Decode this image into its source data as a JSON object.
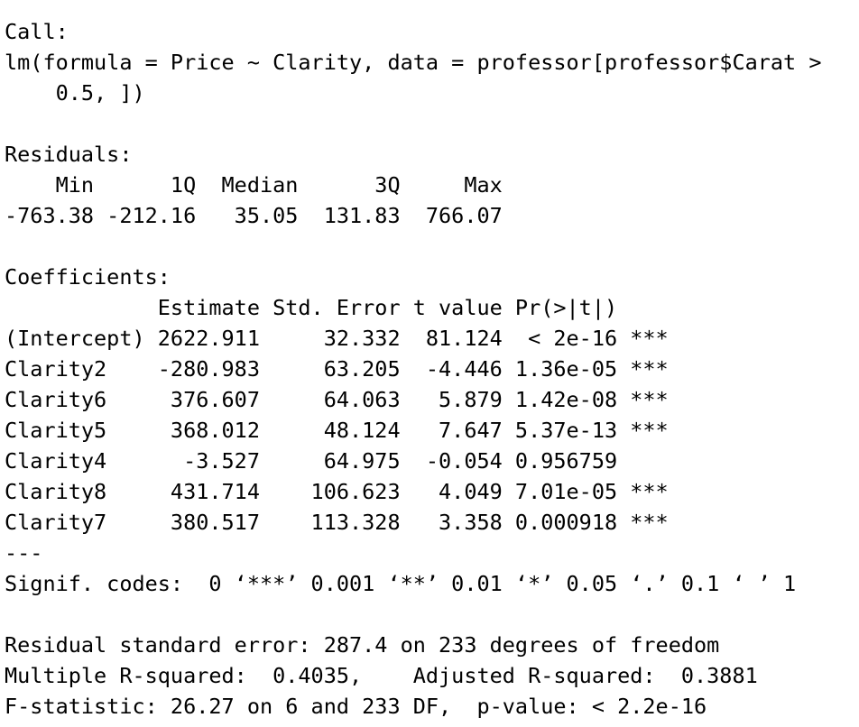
{
  "call": [
    "Call:",
    "lm(formula = Price ~ Clarity, data = professor[professor$Carat >",
    "    0.5, ])"
  ],
  "residuals": [
    "Residuals:",
    "    Min      1Q  Median      3Q     Max",
    "-763.38 -212.16   35.05  131.83  766.07"
  ],
  "coefficients": [
    "Coefficients:",
    "            Estimate Std. Error t value Pr(>|t|)",
    "(Intercept) 2622.911     32.332  81.124  < 2e-16 ***",
    "Clarity2    -280.983     63.205  -4.446 1.36e-05 ***",
    "Clarity6     376.607     64.063   5.879 1.42e-08 ***",
    "Clarity5     368.012     48.124   7.647 5.37e-13 ***",
    "Clarity4      -3.527     64.975  -0.054 0.956759",
    "Clarity8     431.714    106.623   4.049 7.01e-05 ***",
    "Clarity7     380.517    113.328   3.358 0.000918 ***",
    "---",
    "Signif. codes:  0 ‘***’ 0.001 ‘**’ 0.01 ‘*’ 0.05 ‘.’ 0.1 ‘ ’ 1"
  ],
  "summary": [
    "Residual standard error: 287.4 on 233 degrees of freedom",
    "Multiple R-squared:  0.4035,    Adjusted R-squared:  0.3881",
    "F-statistic: 26.27 on 6 and 233 DF,  p-value: < 2.2e-16"
  ]
}
